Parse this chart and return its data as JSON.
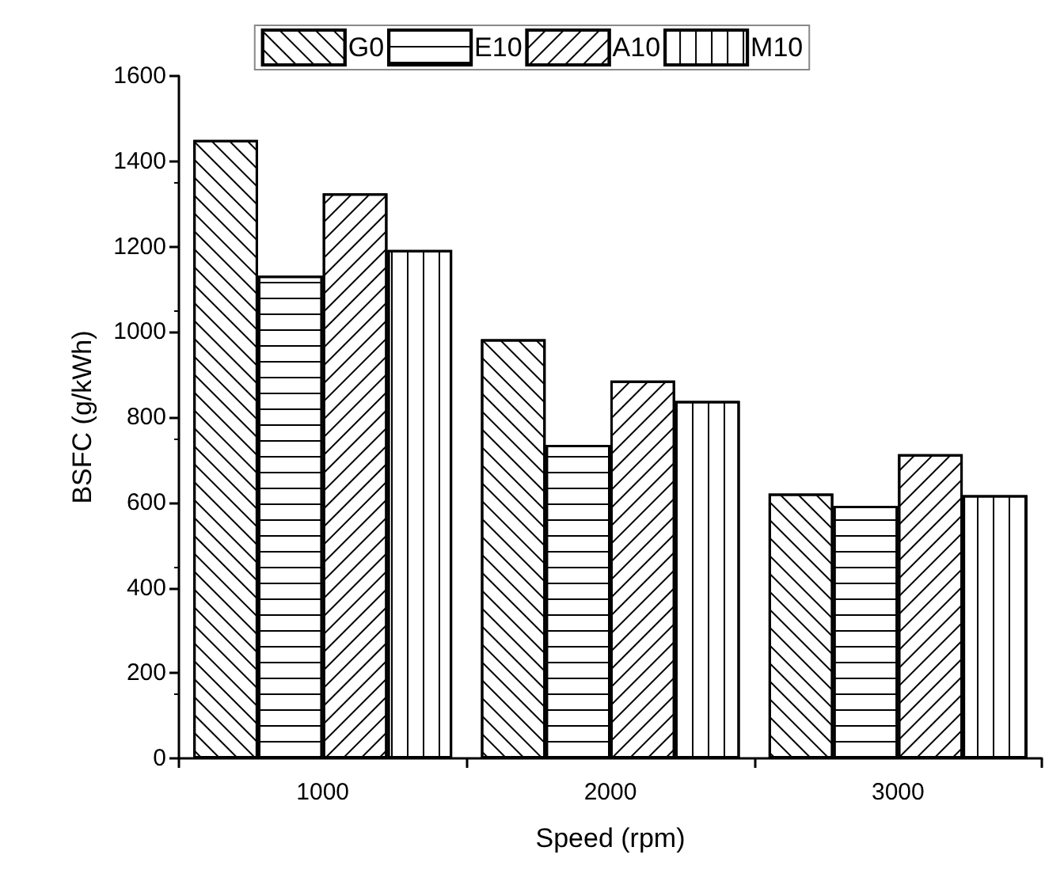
{
  "chart_data": {
    "type": "bar",
    "xlabel": "Speed (rpm)",
    "ylabel": "BSFC (g/kWh)",
    "categories": [
      "1000",
      "2000",
      "3000"
    ],
    "series": [
      {
        "name": "G0",
        "color": "#ffffff",
        "values": [
          1450,
          983,
          621
        ]
      },
      {
        "name": "E10",
        "color": "#ffffff",
        "values": [
          1132,
          735,
          592
        ]
      },
      {
        "name": "A10",
        "color": "#ffffff",
        "values": [
          1325,
          886,
          713
        ]
      },
      {
        "name": "M10",
        "color": "#ffffff",
        "values": [
          1192,
          838,
          617
        ]
      }
    ],
    "ylim": [
      0,
      1600
    ],
    "yticks": [
      0,
      200,
      400,
      600,
      800,
      1000,
      1200,
      1400,
      1600
    ],
    "grid": false,
    "legend": "top"
  }
}
